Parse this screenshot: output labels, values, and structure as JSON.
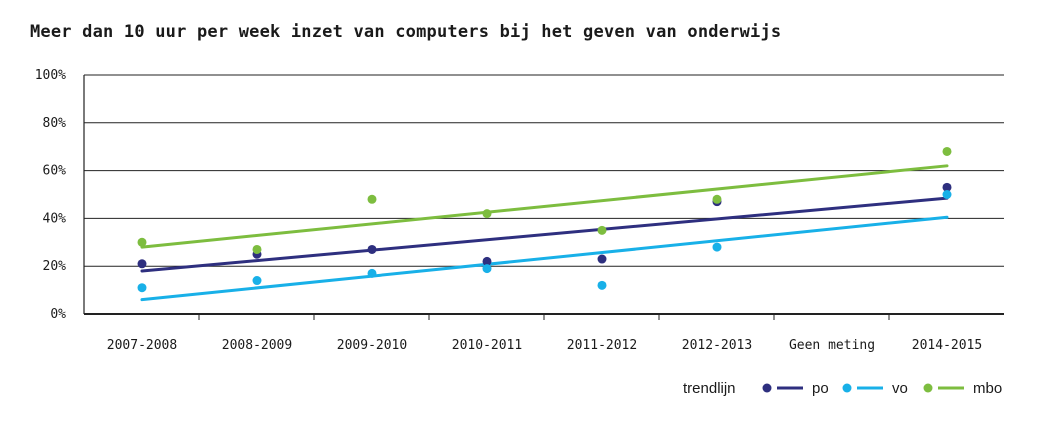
{
  "chart_data": {
    "type": "scatter",
    "title": "Meer dan 10 uur per week inzet van computers bij het geven van onderwijs",
    "categories": [
      "2007-2008",
      "2008-2009",
      "2009-2010",
      "2010-2011",
      "2011-2012",
      "2012-2013",
      "Geen meting",
      "2014-2015"
    ],
    "y_ticks": [
      "0%",
      "20%",
      "40%",
      "60%",
      "80%",
      "100%"
    ],
    "ylim": [
      0,
      100
    ],
    "grid": true,
    "legend_position": "bottom-right",
    "legend_title": "trendlijn",
    "series": [
      {
        "name": "po",
        "color": "#2e2f7f",
        "values": [
          21,
          25,
          27,
          22,
          23,
          47,
          null,
          53
        ],
        "trend": [
          18,
          48.5
        ]
      },
      {
        "name": "vo",
        "color": "#18b0e8",
        "values": [
          11,
          14,
          17,
          19,
          12,
          28,
          null,
          50
        ],
        "trend": [
          6,
          40.5
        ]
      },
      {
        "name": "mbo",
        "color": "#7dbd3f",
        "values": [
          30,
          27,
          48,
          42,
          35,
          48,
          null,
          68
        ],
        "trend": [
          28,
          62
        ]
      }
    ]
  }
}
